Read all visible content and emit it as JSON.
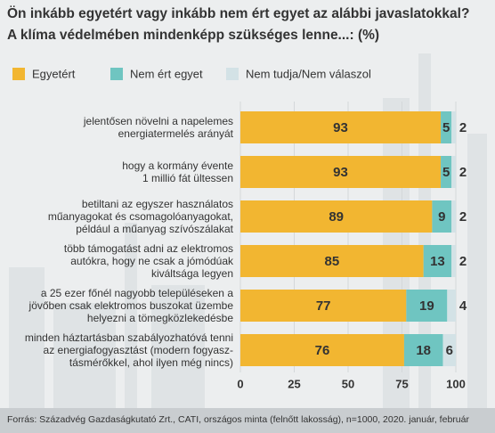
{
  "chart_data": {
    "type": "stacked-barh",
    "title": "Ön inkább egyetért vagy inkább nem ért egyet az alábbi javaslatokkal?",
    "subtitle": "A klíma védelmében mindenképp szükséges lenne...: (%)",
    "categories": [
      "jelentősen növelni a napelemes\nenergiatermelés arányát",
      "hogy a kormány évente\n1 millió fát ültessen",
      "betiltani az egyszer használatos\nműanyagokat és csomagolóanyagokat,\npéldául a műanyag szívószálakat",
      "több támogatást adni az elektromos\nautókra, hogy ne csak a jómódúak\nkiváltsága legyen",
      "a 25 ezer főnél nagyobb településeken a\njövőben csak elektromos buszokat üzembe\nhelyezni a tömegközlekedésbe",
      "minden háztartásban szabályozhatóvá tenni\naz energiafogyasztást (modern fogyasz-\ntásmérőkkel, ahol ilyen még nincs)"
    ],
    "series": [
      {
        "name": "Egyetért",
        "color": "#f2b631",
        "values": [
          93,
          93,
          89,
          85,
          77,
          76
        ]
      },
      {
        "name": "Nem ért egyet",
        "color": "#6fc5c1",
        "values": [
          5,
          5,
          9,
          13,
          19,
          18
        ]
      },
      {
        "name": "Nem tudja/Nem válaszol",
        "color": "#d3e2e6",
        "values": [
          2,
          2,
          2,
          2,
          4,
          6
        ]
      }
    ],
    "xlim": [
      0,
      100
    ],
    "xticks": [
      0,
      25,
      50,
      75,
      100
    ],
    "source": "Forrás: Századvég Gazdaságkutató Zrt., CATI, országos minta (felnőtt lakosság), n=1000, 2020. január, február"
  }
}
